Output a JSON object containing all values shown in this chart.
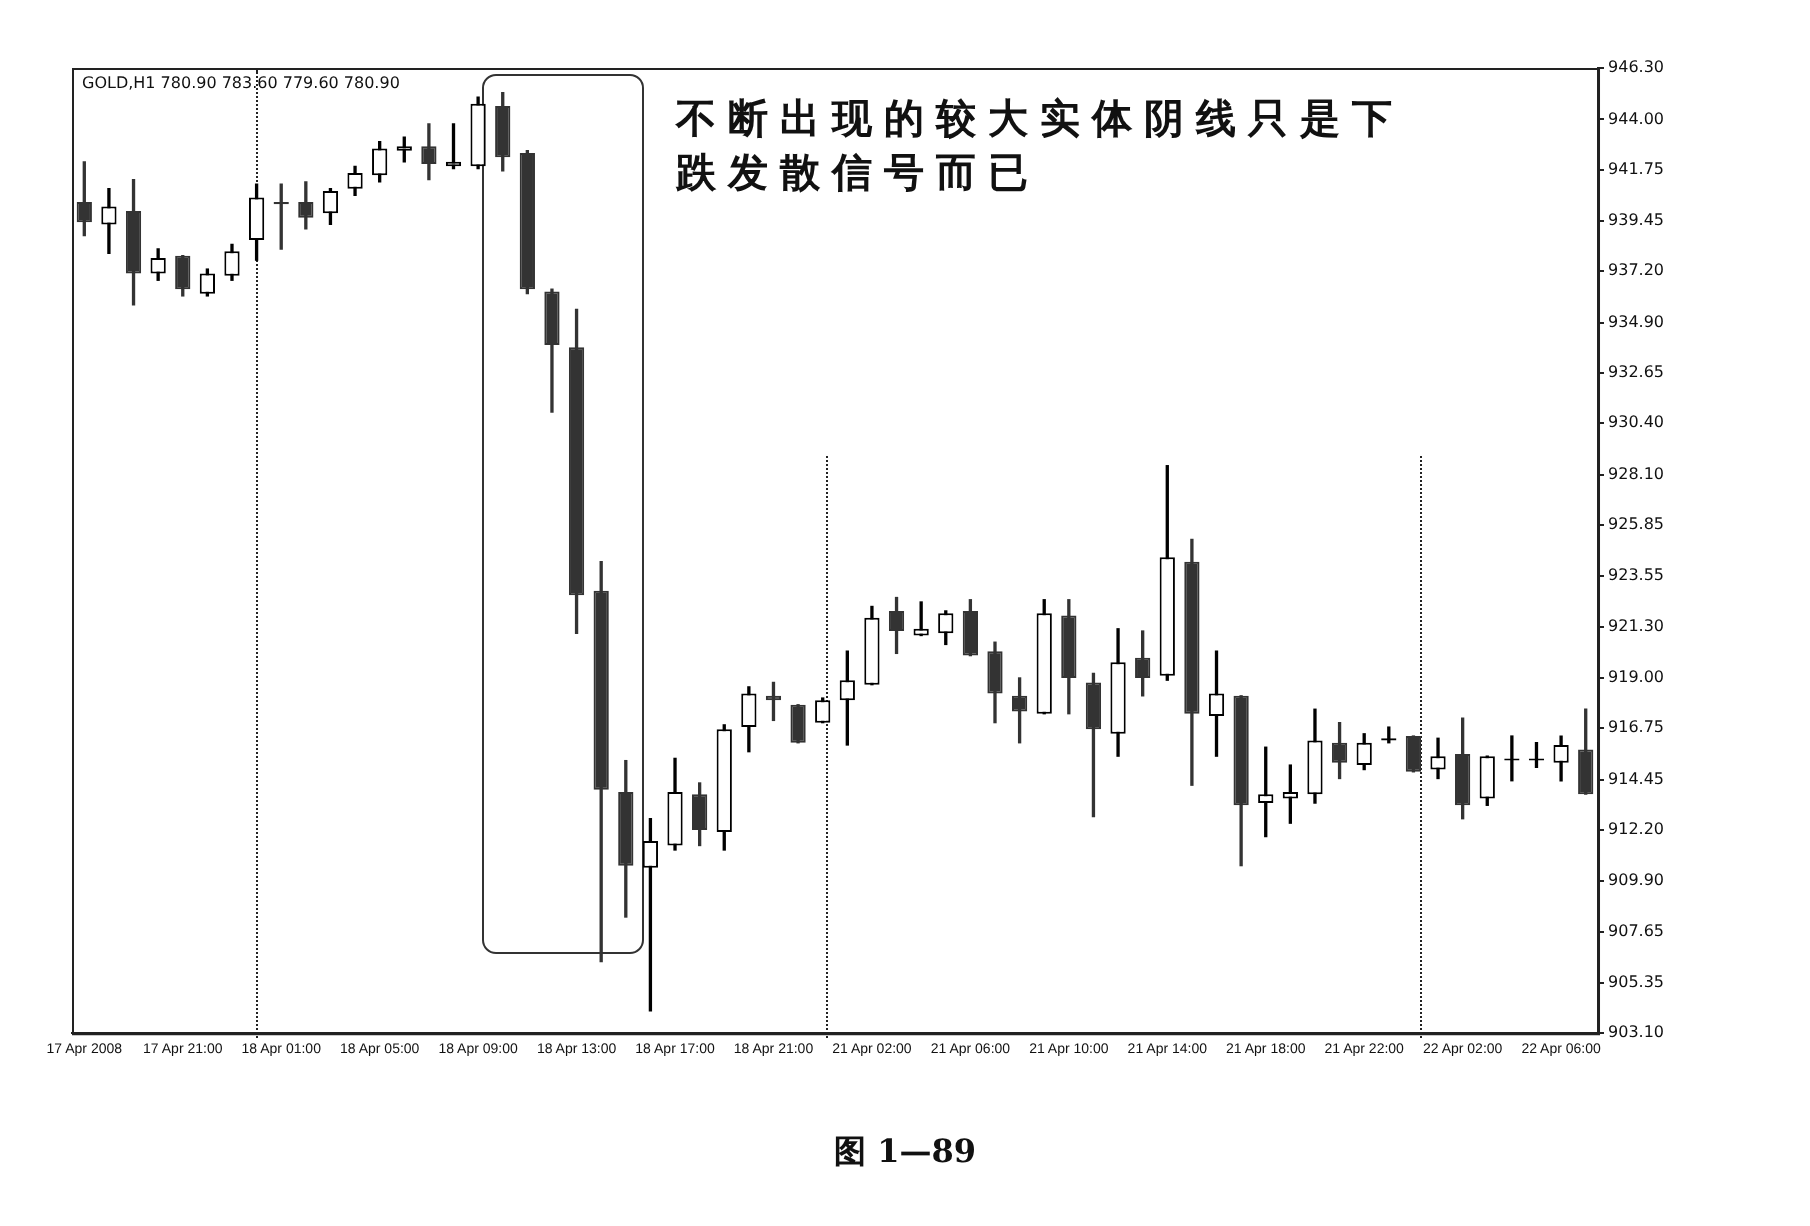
{
  "chart_data": {
    "type": "candlestick",
    "title": "GOLD,H1 780.90 783.60 779.60 780.90",
    "annotations": [
      "不断出现的较大实体阴线只是下跌发散信号而已",
      "图 1—89"
    ],
    "categories": [
      "17 Apr 2008",
      null,
      null,
      null,
      "17 Apr 21:00",
      null,
      null,
      null,
      "18 Apr 01:00",
      null,
      null,
      null,
      "18 Apr 05:00",
      null,
      null,
      null,
      "18 Apr 09:00",
      null,
      null,
      null,
      "18 Apr 13:00",
      null,
      null,
      null,
      "18 Apr 17:00",
      null,
      null,
      null,
      "18 Apr 21:00",
      null,
      null,
      null,
      "21 Apr 02:00",
      null,
      null,
      null,
      "21 Apr 06:00",
      null,
      null,
      null,
      "21 Apr 10:00",
      null,
      null,
      null,
      "21 Apr 14:00",
      null,
      null,
      null,
      "21 Apr 18:00",
      null,
      null,
      null,
      "21 Apr 22:00",
      null,
      null,
      null,
      "22 Apr 02:00",
      null,
      null,
      null,
      "22 Apr 06:00",
      null
    ],
    "ohlc": [
      [
        940.3,
        942.1,
        938.8,
        939.4
      ],
      [
        939.3,
        940.9,
        938.0,
        940.1
      ],
      [
        939.9,
        941.3,
        935.7,
        937.1
      ],
      [
        937.1,
        938.2,
        936.8,
        937.8
      ],
      [
        937.9,
        937.9,
        936.1,
        936.4
      ],
      [
        936.2,
        937.3,
        936.1,
        937.1
      ],
      [
        937.0,
        938.4,
        936.8,
        938.1
      ],
      [
        938.6,
        941.1,
        937.7,
        940.5
      ],
      [
        940.3,
        941.1,
        938.2,
        940.2
      ],
      [
        940.3,
        941.2,
        939.1,
        939.6
      ],
      [
        939.8,
        940.9,
        939.3,
        940.8
      ],
      [
        940.9,
        941.9,
        940.6,
        941.6
      ],
      [
        941.5,
        943.0,
        941.2,
        942.7
      ],
      [
        942.6,
        943.2,
        942.1,
        942.8
      ],
      [
        942.8,
        943.8,
        941.3,
        942.0
      ],
      [
        941.9,
        943.8,
        941.8,
        942.1
      ],
      [
        941.9,
        945.0,
        941.8,
        944.7
      ],
      [
        944.6,
        945.2,
        941.7,
        942.3
      ],
      [
        942.5,
        942.6,
        936.2,
        936.4
      ],
      [
        936.3,
        936.4,
        930.9,
        933.9
      ],
      [
        933.8,
        935.5,
        921.0,
        922.7
      ],
      [
        922.9,
        924.2,
        906.3,
        914.0
      ],
      [
        913.9,
        915.3,
        908.3,
        910.6
      ],
      [
        910.5,
        912.7,
        904.1,
        911.7
      ],
      [
        911.5,
        915.4,
        911.3,
        913.9
      ],
      [
        913.8,
        914.3,
        911.5,
        912.2
      ],
      [
        912.1,
        916.9,
        911.3,
        916.7
      ],
      [
        916.8,
        918.6,
        915.7,
        918.3
      ],
      [
        918.2,
        918.8,
        917.1,
        918.0
      ],
      [
        917.8,
        917.8,
        916.1,
        916.1
      ],
      [
        917.0,
        918.1,
        917.0,
        918.0
      ],
      [
        918.0,
        920.2,
        916.0,
        918.9
      ],
      [
        918.7,
        922.2,
        918.7,
        921.7
      ],
      [
        922.0,
        922.6,
        920.1,
        921.1
      ],
      [
        920.9,
        922.4,
        920.9,
        921.2
      ],
      [
        921.0,
        922.0,
        920.5,
        921.9
      ],
      [
        922.0,
        922.5,
        920.0,
        920.0
      ],
      [
        920.2,
        920.6,
        917.0,
        918.3
      ],
      [
        918.2,
        919.0,
        916.1,
        917.5
      ],
      [
        917.4,
        922.5,
        917.4,
        921.9
      ],
      [
        921.8,
        922.5,
        917.4,
        919.0
      ],
      [
        918.8,
        919.2,
        912.8,
        916.7
      ],
      [
        916.5,
        921.2,
        915.5,
        919.7
      ],
      [
        919.9,
        921.1,
        918.2,
        919.0
      ],
      [
        919.1,
        928.5,
        918.9,
        924.4
      ],
      [
        924.2,
        925.2,
        914.2,
        917.4
      ],
      [
        917.3,
        920.2,
        915.5,
        918.3
      ],
      [
        918.2,
        918.2,
        910.6,
        913.3
      ],
      [
        913.4,
        915.9,
        911.9,
        913.8
      ],
      [
        913.6,
        915.1,
        912.5,
        913.9
      ],
      [
        913.8,
        917.6,
        913.4,
        916.2
      ],
      [
        916.1,
        917.0,
        914.5,
        915.2
      ],
      [
        915.1,
        916.5,
        914.9,
        916.1
      ],
      [
        916.2,
        916.8,
        916.1,
        916.3
      ],
      [
        916.4,
        916.4,
        914.8,
        914.8
      ],
      [
        914.9,
        916.3,
        914.5,
        915.5
      ],
      [
        915.6,
        917.2,
        912.7,
        913.3
      ],
      [
        913.6,
        915.5,
        913.3,
        915.5
      ],
      [
        915.3,
        916.4,
        914.4,
        915.4
      ],
      [
        915.3,
        916.1,
        915.0,
        915.4
      ],
      [
        915.2,
        916.4,
        914.4,
        916.0
      ],
      [
        915.8,
        917.6,
        913.8,
        913.8
      ]
    ],
    "ylim": [
      903.1,
      946.3
    ],
    "yticks": [
      {
        "value": 903.1,
        "label": "903.10"
      },
      {
        "value": 905.35,
        "label": "905.35"
      },
      {
        "value": 907.65,
        "label": "907.65"
      },
      {
        "value": 909.9,
        "label": "909.90"
      },
      {
        "value": 912.2,
        "label": "912.20"
      },
      {
        "value": 914.45,
        "label": "914.45"
      },
      {
        "value": 916.75,
        "label": "916.75"
      },
      {
        "value": 919,
        "label": "919.00"
      },
      {
        "value": 921.3,
        "label": "921.30"
      },
      {
        "value": 923.55,
        "label": "923.55"
      },
      {
        "value": 925.85,
        "label": "925.85"
      },
      {
        "value": 928.1,
        "label": "928.10"
      },
      {
        "value": 930.4,
        "label": "930.40"
      },
      {
        "value": 932.65,
        "label": "932.65"
      },
      {
        "value": 934.9,
        "label": "934.90"
      },
      {
        "value": 937.2,
        "label": "937.20"
      },
      {
        "value": 939.45,
        "label": "939.45"
      },
      {
        "value": 941.75,
        "label": "941.75"
      },
      {
        "value": 944,
        "label": "944.00"
      },
      {
        "value": 946.3,
        "label": "946.30"
      }
    ],
    "legend": false
  }
}
